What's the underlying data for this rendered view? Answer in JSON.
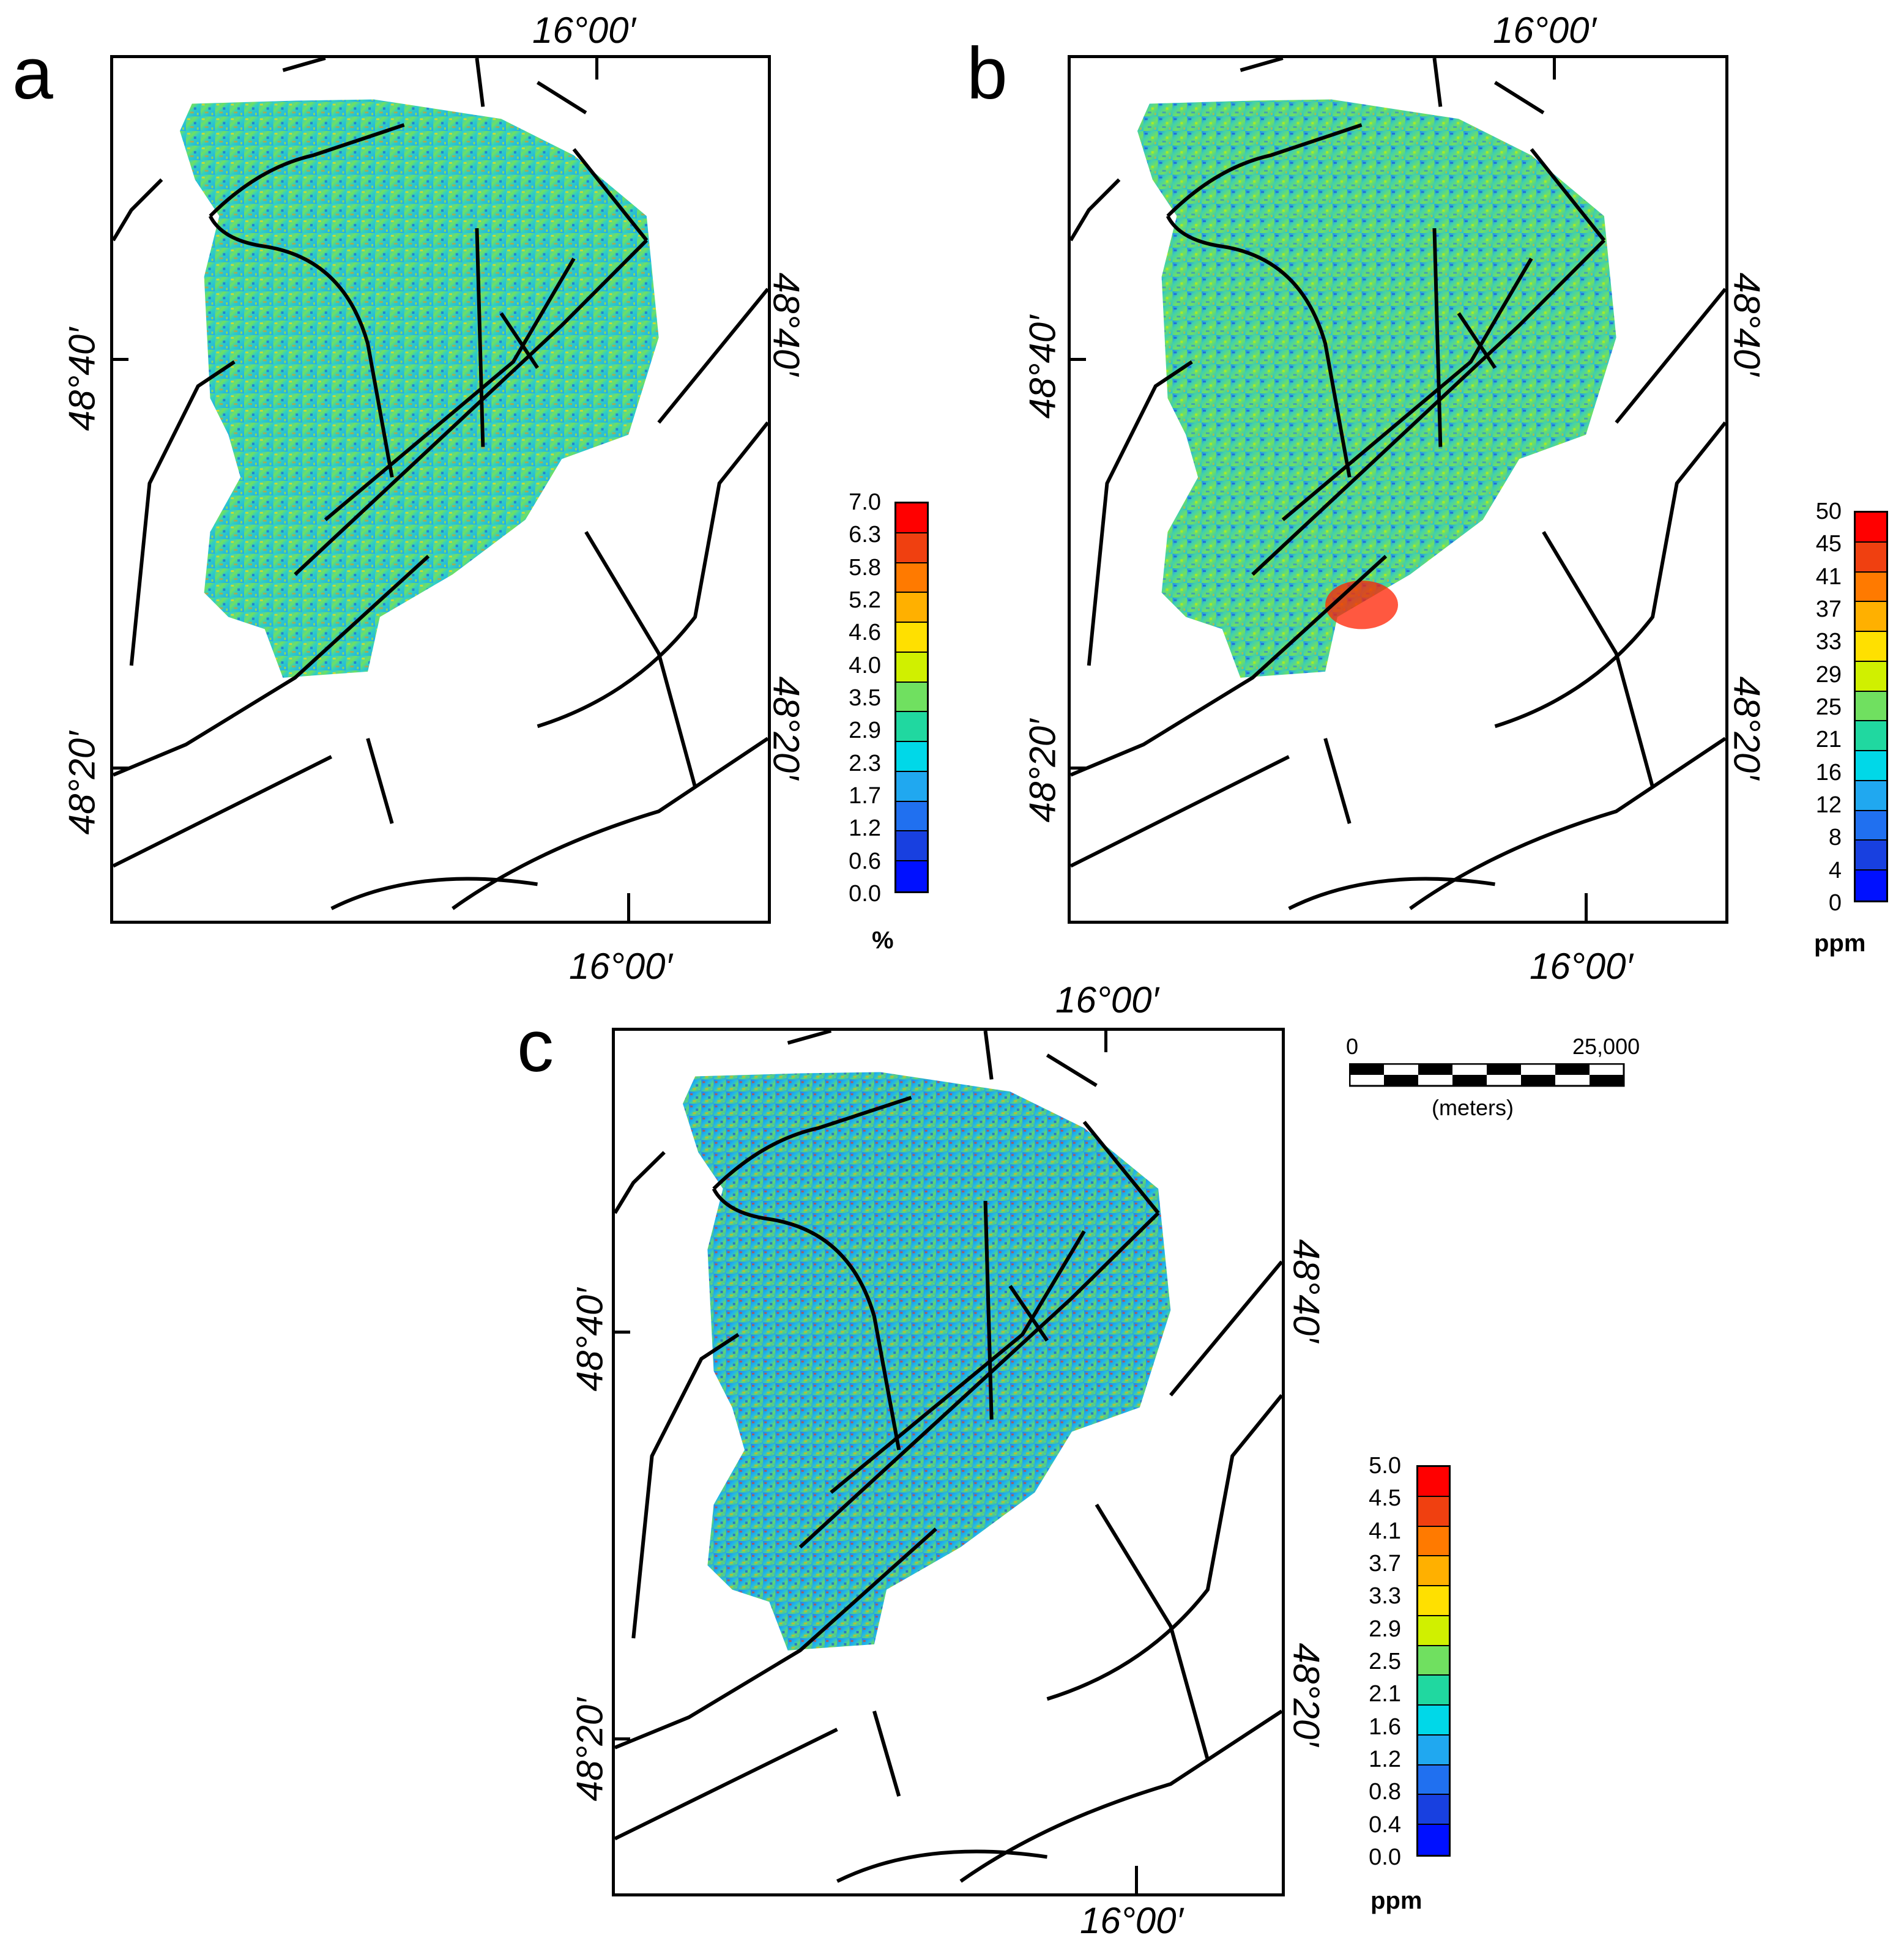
{
  "panels": [
    {
      "letter": "a",
      "top_lon": "16°00′",
      "bottom_lon": "16°00′",
      "left_lat_upper": "48°40′",
      "left_lat_lower": "48°20′",
      "right_lat_upper": "48°40′",
      "right_lat_lower": "48°20′",
      "colorbar_labels": [
        "7.0",
        "6.3",
        "5.8",
        "5.2",
        "4.6",
        "4.0",
        "3.5",
        "2.9",
        "2.3",
        "1.7",
        "1.2",
        "0.6",
        "0.0"
      ],
      "unit": "%"
    },
    {
      "letter": "b",
      "top_lon": "16°00′",
      "bottom_lon": "16°00′",
      "left_lat_upper": "48°40′",
      "left_lat_lower": "48°20′",
      "right_lat_upper": "48°40′",
      "right_lat_lower": "48°20′",
      "colorbar_labels": [
        "50",
        "45",
        "41",
        "37",
        "33",
        "29",
        "25",
        "21",
        "16",
        "12",
        "8",
        "4",
        "0"
      ],
      "unit": "ppm"
    },
    {
      "letter": "c",
      "top_lon": "16°00′",
      "bottom_lon": "16°00′",
      "left_lat_upper": "48°40′",
      "left_lat_lower": "48°20′",
      "right_lat_upper": "48°40′",
      "right_lat_lower": "48°20′",
      "colorbar_labels": [
        "5.0",
        "4.5",
        "4.1",
        "3.7",
        "3.3",
        "2.9",
        "2.5",
        "2.1",
        "1.6",
        "1.2",
        "0.8",
        "0.4",
        "0.0"
      ],
      "unit": "ppm"
    }
  ],
  "scale_bar": {
    "start_label": "0",
    "end_label": "25,000",
    "units_label": "(meters)"
  },
  "colors": {
    "ramp": [
      "#ff0000",
      "#f04010",
      "#ff7a00",
      "#ffb000",
      "#ffe000",
      "#d0f000",
      "#70e060",
      "#20d8a0",
      "#00d8e8",
      "#20a8f0",
      "#2070f0",
      "#1840e0",
      "#0010ff"
    ],
    "fault_line": "#000000"
  }
}
